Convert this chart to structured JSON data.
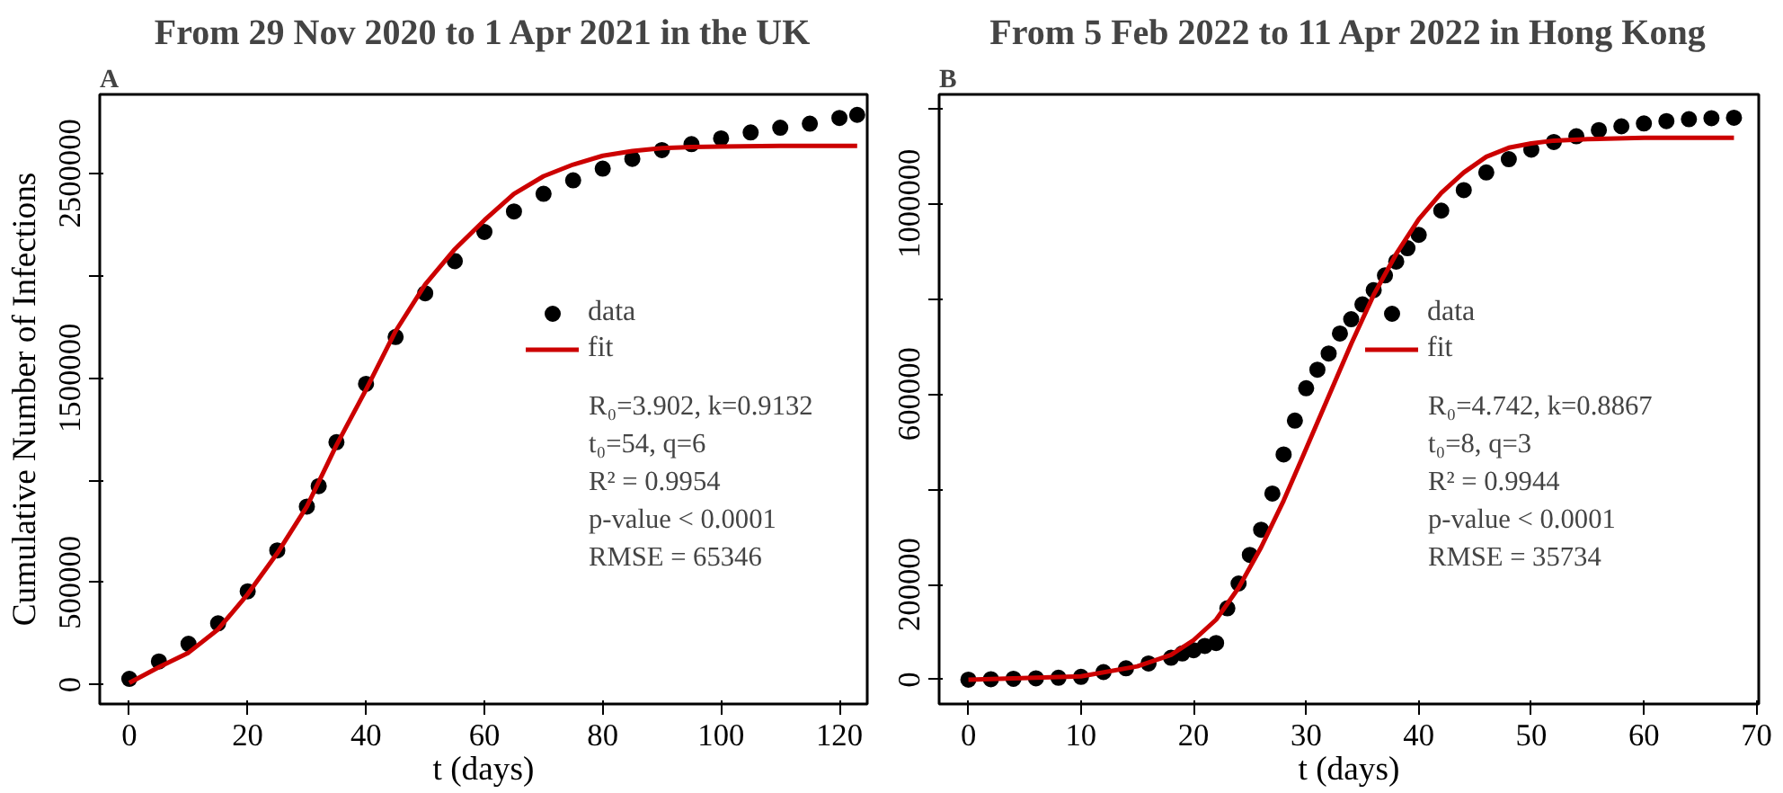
{
  "chart_data": [
    {
      "type": "scatter",
      "title": "From 29 Nov 2020 to 1 Apr 2021 in the UK",
      "xlabel": "t (days)",
      "ylabel": "Cumulative Number of Infections",
      "xlim": [
        -5,
        124.7
      ],
      "ylim": [
        -94000,
        2886000
      ],
      "xticks": [
        0,
        20,
        40,
        60,
        80,
        100,
        120
      ],
      "yticks": [
        0,
        500000,
        {
          "value": 1000000,
          "label": null
        },
        1500000,
        {
          "value": 2000000,
          "label": null
        },
        2500000
      ],
      "grid": false,
      "legend": "right",
      "annotations": [
        "A",
        "R₀=3.902, k=0.9132",
        "t₀=54, q=6",
        "R² = 0.9954",
        "p-value < 0.0001",
        "RMSE = 65346"
      ],
      "series": [
        {
          "name": "data",
          "color": "#000000",
          "x": [
            0,
            5,
            10,
            15,
            20,
            25,
            30,
            32,
            35,
            40,
            45,
            50,
            55,
            60,
            65,
            70,
            75,
            80,
            85,
            90,
            95,
            100,
            105,
            110,
            115,
            120,
            123
          ],
          "values": [
            29000,
            114000,
            200000,
            300000,
            457000,
            657000,
            871000,
            971000,
            1186000,
            1471000,
            1700000,
            1914000,
            2071000,
            2214000,
            2314000,
            2400000,
            2466000,
            2523000,
            2571000,
            2614000,
            2643000,
            2671000,
            2700000,
            2723000,
            2743000,
            2771000,
            2786000
          ]
        },
        {
          "name": "fit",
          "type": "line",
          "color": "#cc0000",
          "x": [
            0,
            5,
            10,
            15,
            20,
            25,
            30,
            35,
            40,
            45,
            50,
            55,
            60,
            65,
            70,
            75,
            80,
            85,
            90,
            95,
            100,
            110,
            123
          ],
          "values": [
            9000,
            86000,
            157000,
            271000,
            443000,
            643000,
            871000,
            1171000,
            1443000,
            1729000,
            1957000,
            2129000,
            2271000,
            2400000,
            2486000,
            2543000,
            2586000,
            2609000,
            2623000,
            2629000,
            2631000,
            2634000,
            2634000
          ]
        }
      ]
    },
    {
      "type": "scatter",
      "title": "From 5 Feb 2022 to 11 Apr 2022 in Hong Kong",
      "xlabel": "t (days)",
      "xlim": [
        -2.6,
        70.2
      ],
      "ylim": [
        -51000,
        1229000
      ],
      "xticks": [
        0,
        10,
        20,
        30,
        40,
        50,
        60,
        70
      ],
      "yticks": [
        0,
        200000,
        {
          "value": 400000,
          "label": null
        },
        600000,
        {
          "value": 800000,
          "label": null
        },
        1000000,
        {
          "value": 1200000,
          "label": null
        }
      ],
      "grid": false,
      "legend": "right",
      "annotations": [
        "B",
        "R₀=4.742, k=0.8867",
        "t₀=8, q=3",
        "R² = 0.9944",
        "p-value < 0.0001",
        "RMSE = 35734"
      ],
      "series": [
        {
          "name": "data",
          "color": "#000000",
          "x": [
            0,
            2,
            4,
            6,
            8,
            10,
            12,
            14,
            16,
            18,
            19,
            20,
            21,
            22,
            23,
            24,
            25,
            26,
            27,
            28,
            29,
            30,
            31,
            32,
            33,
            34,
            35,
            36,
            37,
            38,
            39,
            40,
            42,
            44,
            46,
            48,
            50,
            52,
            54,
            56,
            58,
            60,
            62,
            64,
            66,
            68
          ],
          "values": [
            0,
            1000,
            2000,
            3000,
            4000,
            6000,
            16000,
            24000,
            34000,
            46000,
            55000,
            62000,
            71000,
            77000,
            150000,
            202000,
            262000,
            315000,
            391000,
            473000,
            544000,
            612000,
            651000,
            685000,
            727000,
            757000,
            788000,
            818000,
            849000,
            878000,
            906000,
            934000,
            985000,
            1028000,
            1065000,
            1093000,
            1113000,
            1129000,
            1141000,
            1154000,
            1162000,
            1168000,
            1173000,
            1177000,
            1179000,
            1180000
          ]
        },
        {
          "name": "fit",
          "type": "line",
          "color": "#cc0000",
          "x": [
            0,
            10,
            15,
            18,
            20,
            22,
            24,
            26,
            28,
            30,
            32,
            34,
            36,
            38,
            40,
            42,
            44,
            46,
            48,
            50,
            52,
            55,
            60,
            68
          ],
          "values": [
            0,
            7000,
            28000,
            52000,
            83000,
            126000,
            193000,
            278000,
            376000,
            485000,
            595000,
            705000,
            808000,
            894000,
            967000,
            1022000,
            1065000,
            1098000,
            1117000,
            1126000,
            1132000,
            1135000,
            1138000,
            1138000
          ]
        }
      ]
    }
  ]
}
